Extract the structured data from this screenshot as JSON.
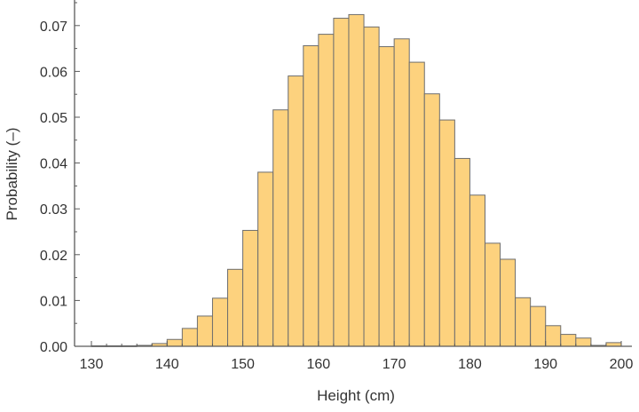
{
  "chart_data": {
    "type": "bar",
    "subtype": "histogram",
    "title": "",
    "xlabel": "Height (cm)",
    "ylabel": "Probability (–)",
    "xlim": [
      130,
      200
    ],
    "ylim": [
      0,
      0.077
    ],
    "bin_width": 2,
    "x_ticks": [
      "130",
      "140",
      "150",
      "160",
      "170",
      "180",
      "190",
      "200"
    ],
    "x_tick_values": [
      130,
      140,
      150,
      160,
      170,
      180,
      190,
      200
    ],
    "y_ticks": [
      "0.00",
      "0.01",
      "0.02",
      "0.03",
      "0.04",
      "0.05",
      "0.06",
      "0.07"
    ],
    "y_tick_values": [
      0,
      0.01,
      0.02,
      0.03,
      0.04,
      0.05,
      0.06,
      0.07
    ],
    "bar_color": "#FDD27E",
    "edge_color": "#6E6E6E",
    "grid": false,
    "bins": [
      {
        "x0": 130,
        "x1": 132,
        "value": 0.0001
      },
      {
        "x0": 132,
        "x1": 134,
        "value": 0.0001
      },
      {
        "x0": 134,
        "x1": 136,
        "value": 0.0001
      },
      {
        "x0": 136,
        "x1": 138,
        "value": 0.0002
      },
      {
        "x0": 138,
        "x1": 140,
        "value": 0.0006
      },
      {
        "x0": 140,
        "x1": 142,
        "value": 0.0015
      },
      {
        "x0": 142,
        "x1": 144,
        "value": 0.0039
      },
      {
        "x0": 144,
        "x1": 146,
        "value": 0.0066
      },
      {
        "x0": 146,
        "x1": 148,
        "value": 0.0105
      },
      {
        "x0": 148,
        "x1": 150,
        "value": 0.0168
      },
      {
        "x0": 150,
        "x1": 152,
        "value": 0.0253
      },
      {
        "x0": 152,
        "x1": 154,
        "value": 0.038
      },
      {
        "x0": 154,
        "x1": 156,
        "value": 0.0516
      },
      {
        "x0": 156,
        "x1": 158,
        "value": 0.059
      },
      {
        "x0": 158,
        "x1": 160,
        "value": 0.0656
      },
      {
        "x0": 160,
        "x1": 162,
        "value": 0.0681
      },
      {
        "x0": 162,
        "x1": 164,
        "value": 0.0716
      },
      {
        "x0": 164,
        "x1": 166,
        "value": 0.0724
      },
      {
        "x0": 166,
        "x1": 168,
        "value": 0.0697
      },
      {
        "x0": 168,
        "x1": 170,
        "value": 0.0654
      },
      {
        "x0": 170,
        "x1": 172,
        "value": 0.0671
      },
      {
        "x0": 172,
        "x1": 174,
        "value": 0.062
      },
      {
        "x0": 174,
        "x1": 176,
        "value": 0.0551
      },
      {
        "x0": 176,
        "x1": 178,
        "value": 0.0494
      },
      {
        "x0": 178,
        "x1": 180,
        "value": 0.041
      },
      {
        "x0": 180,
        "x1": 182,
        "value": 0.033
      },
      {
        "x0": 182,
        "x1": 184,
        "value": 0.0225
      },
      {
        "x0": 184,
        "x1": 186,
        "value": 0.019
      },
      {
        "x0": 186,
        "x1": 188,
        "value": 0.0106
      },
      {
        "x0": 188,
        "x1": 190,
        "value": 0.0087
      },
      {
        "x0": 190,
        "x1": 192,
        "value": 0.0045
      },
      {
        "x0": 192,
        "x1": 194,
        "value": 0.0026
      },
      {
        "x0": 194,
        "x1": 196,
        "value": 0.0018
      },
      {
        "x0": 196,
        "x1": 198,
        "value": 0.0002
      },
      {
        "x0": 198,
        "x1": 200,
        "value": 0.0008
      }
    ]
  }
}
